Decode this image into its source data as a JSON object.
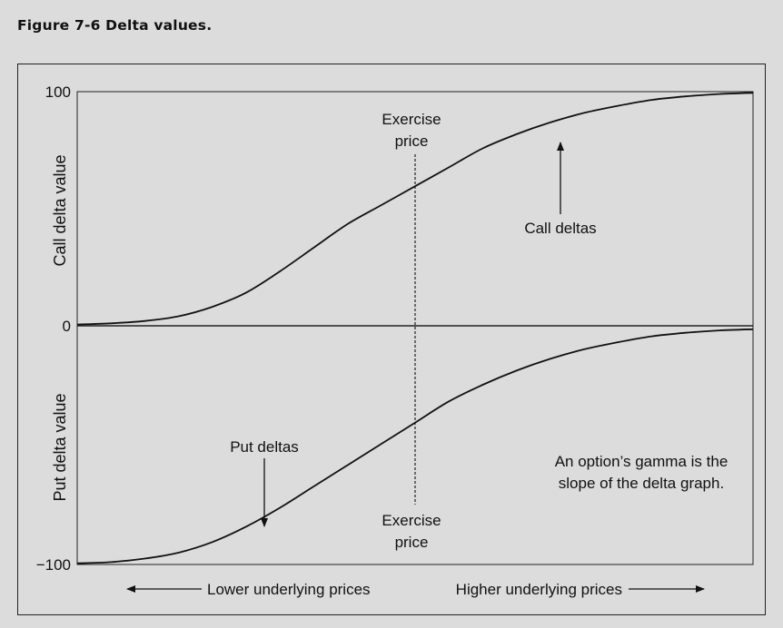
{
  "figure": {
    "title": "Figure 7-6  Delta values."
  },
  "chart_data": {
    "type": "line",
    "x_axis": {
      "left_label": "Lower underlying prices",
      "right_label": "Higher underlying prices"
    },
    "y_axis": {
      "upper_label": "Call delta value",
      "lower_label": "Put delta value",
      "ticks": [
        "100",
        "0",
        "−100"
      ],
      "range": [
        -100,
        100
      ]
    },
    "exercise_price_x": 0.5,
    "series": [
      {
        "name": "Call deltas",
        "x": [
          0.0,
          0.05,
          0.1,
          0.15,
          0.2,
          0.25,
          0.3,
          0.35,
          0.4,
          0.45,
          0.5,
          0.55,
          0.6,
          0.65,
          0.7,
          0.75,
          0.8,
          0.85,
          0.9,
          0.95,
          1.0
        ],
        "y": [
          1.5,
          2,
          3,
          5,
          9,
          15,
          24,
          34,
          44,
          52,
          60,
          68,
          76,
          82,
          87,
          91,
          94,
          96.5,
          98,
          99,
          99.5
        ]
      },
      {
        "name": "Put deltas",
        "x": [
          0.0,
          0.05,
          0.1,
          0.15,
          0.2,
          0.25,
          0.3,
          0.35,
          0.4,
          0.45,
          0.5,
          0.55,
          0.6,
          0.65,
          0.7,
          0.75,
          0.8,
          0.85,
          0.9,
          0.95,
          1.0
        ],
        "y": [
          -99.5,
          -99,
          -97.5,
          -95,
          -90.5,
          -84,
          -76,
          -67,
          -58,
          -49,
          -40,
          -31,
          -24,
          -18,
          -13,
          -9,
          -6,
          -3.5,
          -2,
          -1,
          -0.5
        ]
      }
    ],
    "annotations": {
      "exercise_top": [
        "Exercise",
        "price"
      ],
      "exercise_bottom": [
        "Exercise",
        "price"
      ],
      "call_label": "Call deltas",
      "put_label": "Put deltas",
      "gamma_note": [
        "An option’s gamma is the",
        "slope of the delta graph."
      ]
    }
  }
}
